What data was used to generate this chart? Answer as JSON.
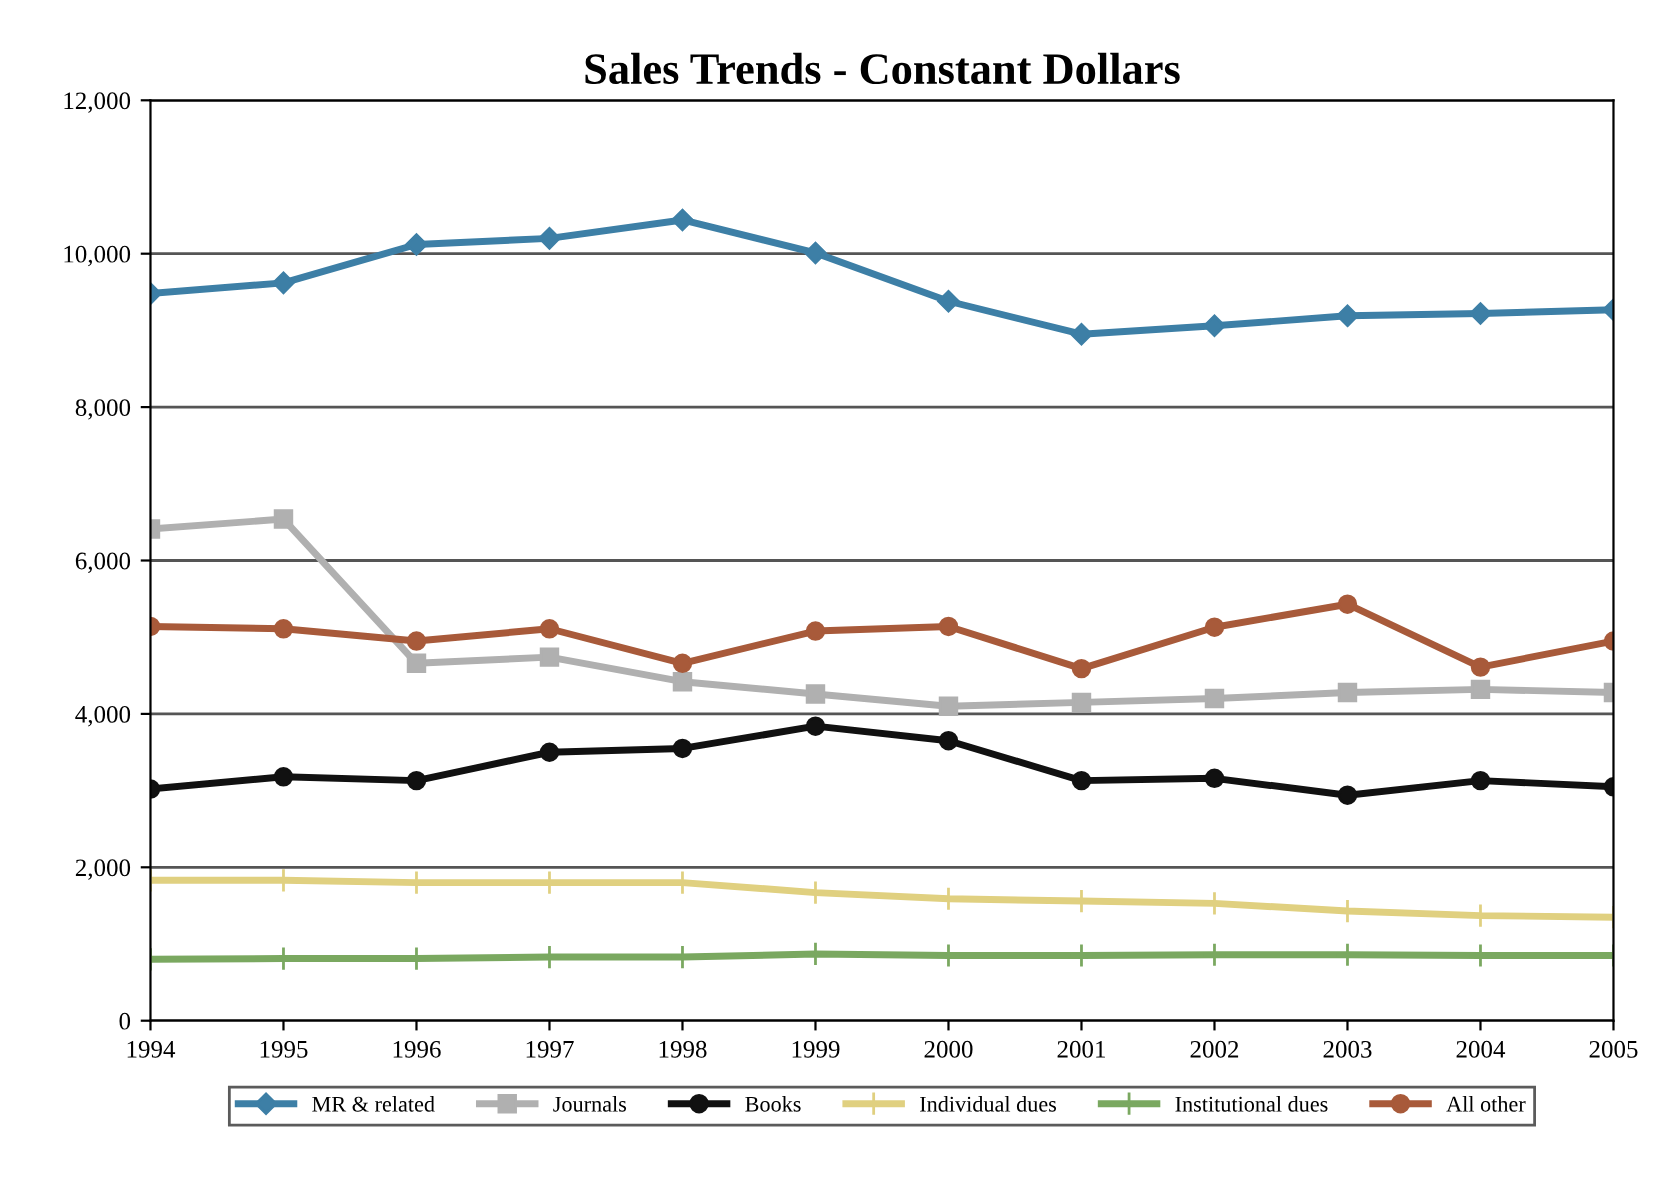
{
  "chart_data": {
    "type": "line",
    "title": "Sales Trends - Constant Dollars",
    "x": [
      1994,
      1995,
      1996,
      1997,
      1998,
      1999,
      2000,
      2001,
      2002,
      2003,
      2004,
      2005
    ],
    "xlim": [
      1994,
      2005
    ],
    "xticks": [
      1994,
      1995,
      1996,
      1997,
      1998,
      1999,
      2000,
      2001,
      2002,
      2003,
      2004,
      2005
    ],
    "ylim": [
      0,
      12000
    ],
    "yticks": [
      {
        "value": 0,
        "label": "0"
      },
      {
        "value": 2000,
        "label": "2,000"
      },
      {
        "value": 4000,
        "label": "4,000"
      },
      {
        "value": 6000,
        "label": "6,000"
      },
      {
        "value": 8000,
        "label": "8,000"
      },
      {
        "value": 10000,
        "label": "10,000"
      },
      {
        "value": 12000,
        "label": "12,000"
      }
    ],
    "grid": "y",
    "legend": "bottom",
    "series": [
      {
        "name": "MR & related",
        "color": "#3d7fa6",
        "marker": "diamond",
        "values": [
          9480,
          9620,
          10120,
          10200,
          10440,
          10010,
          9380,
          8950,
          9060,
          9190,
          9220,
          9270
        ]
      },
      {
        "name": "Journals",
        "color": "#b0b0b0",
        "marker": "square",
        "values": [
          6410,
          6540,
          4660,
          4740,
          4420,
          4260,
          4100,
          4150,
          4200,
          4280,
          4320,
          4280
        ]
      },
      {
        "name": "Books",
        "color": "#111111",
        "marker": "circle",
        "values": [
          3020,
          3180,
          3130,
          3500,
          3550,
          3840,
          3650,
          3130,
          3160,
          2940,
          3130,
          3050
        ]
      },
      {
        "name": "Individual dues",
        "color": "#e0d080",
        "marker": "cross",
        "values": [
          1830,
          1830,
          1800,
          1800,
          1800,
          1670,
          1590,
          1560,
          1530,
          1430,
          1370,
          1350
        ]
      },
      {
        "name": "Institutional dues",
        "color": "#7aa860",
        "marker": "cross",
        "values": [
          800,
          810,
          810,
          830,
          830,
          870,
          850,
          850,
          860,
          860,
          850,
          850
        ]
      },
      {
        "name": "All other",
        "color": "#a85a3a",
        "marker": "circle",
        "values": [
          5140,
          5110,
          4950,
          5110,
          4660,
          5080,
          5140,
          4590,
          5130,
          5430,
          4610,
          4950
        ]
      }
    ]
  }
}
